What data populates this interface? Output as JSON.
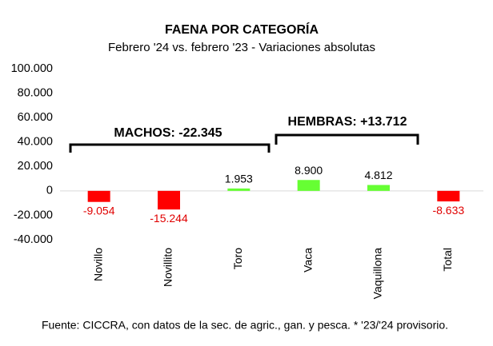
{
  "chart_data": {
    "type": "bar",
    "title": "FAENA POR CATEGORÍA",
    "subtitle": "Febrero '24 vs. febrero '23 - Variaciones absolutas",
    "categories": [
      "Novillo",
      "Novillito",
      "Toro",
      "Vaca",
      "Vaquillona",
      "Total"
    ],
    "values": [
      -9054,
      -15244,
      1953,
      8900,
      4812,
      -8633
    ],
    "value_labels": [
      "-9.054",
      "-15.244",
      "1.953",
      "8.900",
      "4.812",
      "-8.633"
    ],
    "colors": [
      "#ff0000",
      "#ff0000",
      "#66ff33",
      "#66ff33",
      "#66ff33",
      "#ff0000"
    ],
    "ylim": [
      -40000,
      100000
    ],
    "yticks": [
      {
        "value": -40000,
        "label": "-40.000"
      },
      {
        "value": -20000,
        "label": "-20.000"
      },
      0,
      {
        "value": 20000,
        "label": "20.000"
      },
      {
        "value": 40000,
        "label": "40.000"
      },
      {
        "value": 60000,
        "label": "60.000"
      },
      {
        "value": 80000,
        "label": "80.000"
      },
      {
        "value": 100000,
        "label": "100.000"
      }
    ],
    "annotations": [
      "MACHOS: -22.345",
      "HEMBRAS: +13.712"
    ],
    "source": "Fuente: CICCRA, con datos de la sec. de agric., gan. y pesca. * '23/'24 provisorio."
  }
}
